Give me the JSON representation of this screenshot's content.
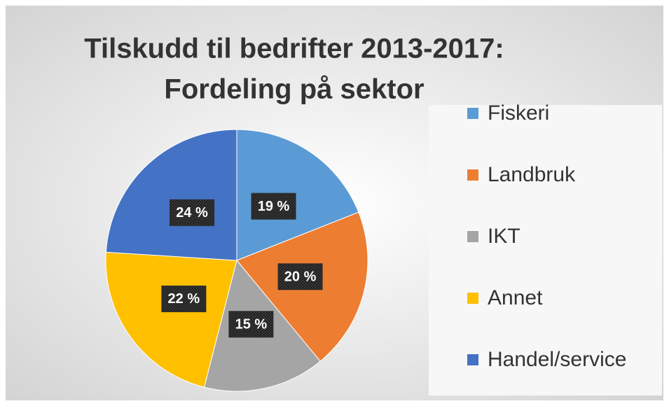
{
  "chart_data": {
    "type": "pie",
    "title": [
      "Tilskudd til bedrifter 2013-2017:",
      "Fordeling på sektor"
    ],
    "categories": [
      "Fiskeri",
      "Landbruk",
      "IKT",
      "Annet",
      "Handel/service"
    ],
    "values": [
      19,
      20,
      15,
      22,
      24
    ],
    "value_labels": [
      "19 %",
      "20 %",
      "15 %",
      "22 %",
      "24 %"
    ],
    "colors": [
      "#5b9bd5",
      "#ed7d31",
      "#a5a5a5",
      "#ffc000",
      "#4472c4"
    ],
    "legend": "right"
  }
}
